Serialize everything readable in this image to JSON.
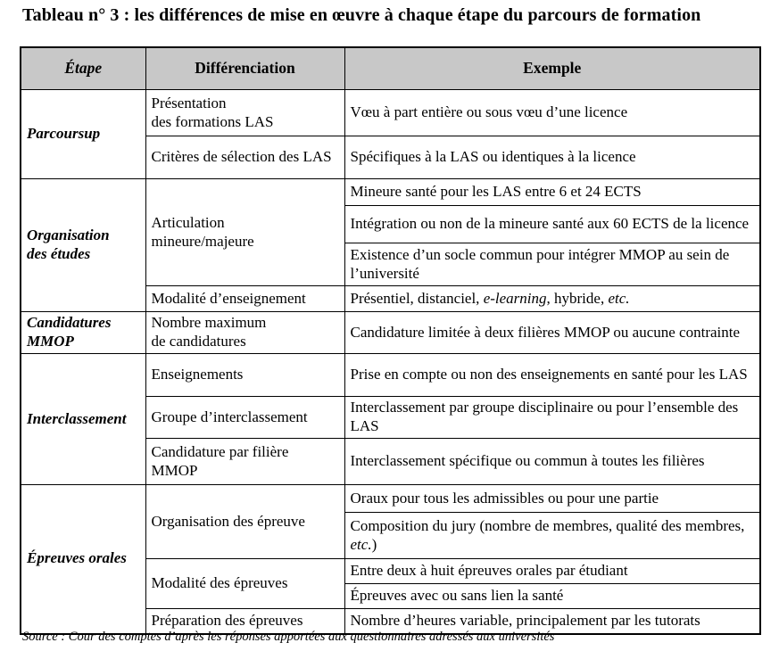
{
  "title": "Tableau n° 3 : les différences de mise en œuvre à chaque étape du parcours de formation",
  "table": {
    "headers": {
      "etape": "Étape",
      "differenciation": "Différenciation",
      "exemple": "Exemple"
    },
    "sections": [
      {
        "etape": "Parcoursup",
        "rows": [
          {
            "diff": "Présentation\ndes formations LAS",
            "examples": [
              "Vœu à part entière ou sous vœu d’une licence"
            ]
          },
          {
            "diff": "Critères de sélection des LAS",
            "examples": [
              "Spécifiques à la LAS ou identiques à la licence"
            ]
          }
        ]
      },
      {
        "etape": "Organisation\ndes études",
        "rows": [
          {
            "diff": "Articulation\nmineure/majeure",
            "examples": [
              "Mineure santé pour les LAS entre 6 et 24 ECTS",
              "Intégration ou non de la mineure santé aux 60 ECTS de la licence",
              "Existence d’un socle commun pour intégrer MMOP au sein de l’université"
            ]
          },
          {
            "diff": "Modalité d’enseignement",
            "examples": [
              "Présentiel, distanciel, *e-learning*, hybride, *etc.*"
            ]
          }
        ]
      },
      {
        "etape": "Candidatures\nMMOP",
        "rows": [
          {
            "diff": "Nombre maximum\nde candidatures",
            "examples": [
              "Candidature limitée à deux filières MMOP ou aucune contrainte"
            ]
          }
        ]
      },
      {
        "etape": "Interclassement",
        "rows": [
          {
            "diff": "Enseignements",
            "examples": [
              "Prise en compte ou non des enseignements en santé pour les LAS"
            ]
          },
          {
            "diff": "Groupe d’interclassement",
            "examples": [
              "Interclassement par groupe disciplinaire ou pour l’ensemble des LAS"
            ]
          },
          {
            "diff": "Candidature par filière\nMMOP",
            "examples": [
              "Interclassement spécifique ou commun à toutes les filières"
            ]
          }
        ]
      },
      {
        "etape": "Épreuves orales",
        "rows": [
          {
            "diff": "Organisation des épreuve",
            "examples": [
              "Oraux pour tous les admissibles ou pour une partie",
              "Composition du jury (nombre de membres, qualité des membres, *etc.*)"
            ]
          },
          {
            "diff": "Modalité des épreuves",
            "examples": [
              "Entre deux à huit épreuves orales par étudiant",
              "Épreuves avec ou sans lien la santé"
            ]
          },
          {
            "diff": "Préparation des épreuves",
            "examples": [
              "Nombre d’heures variable, principalement par les tutorats"
            ]
          }
        ]
      }
    ]
  },
  "source": "Source : Cour des comptes d’après les réponses apportées aux questionnaires adressés aux universités",
  "colors": {
    "header_background": "#c8c8c8",
    "border": "#000000",
    "text": "#000000"
  }
}
